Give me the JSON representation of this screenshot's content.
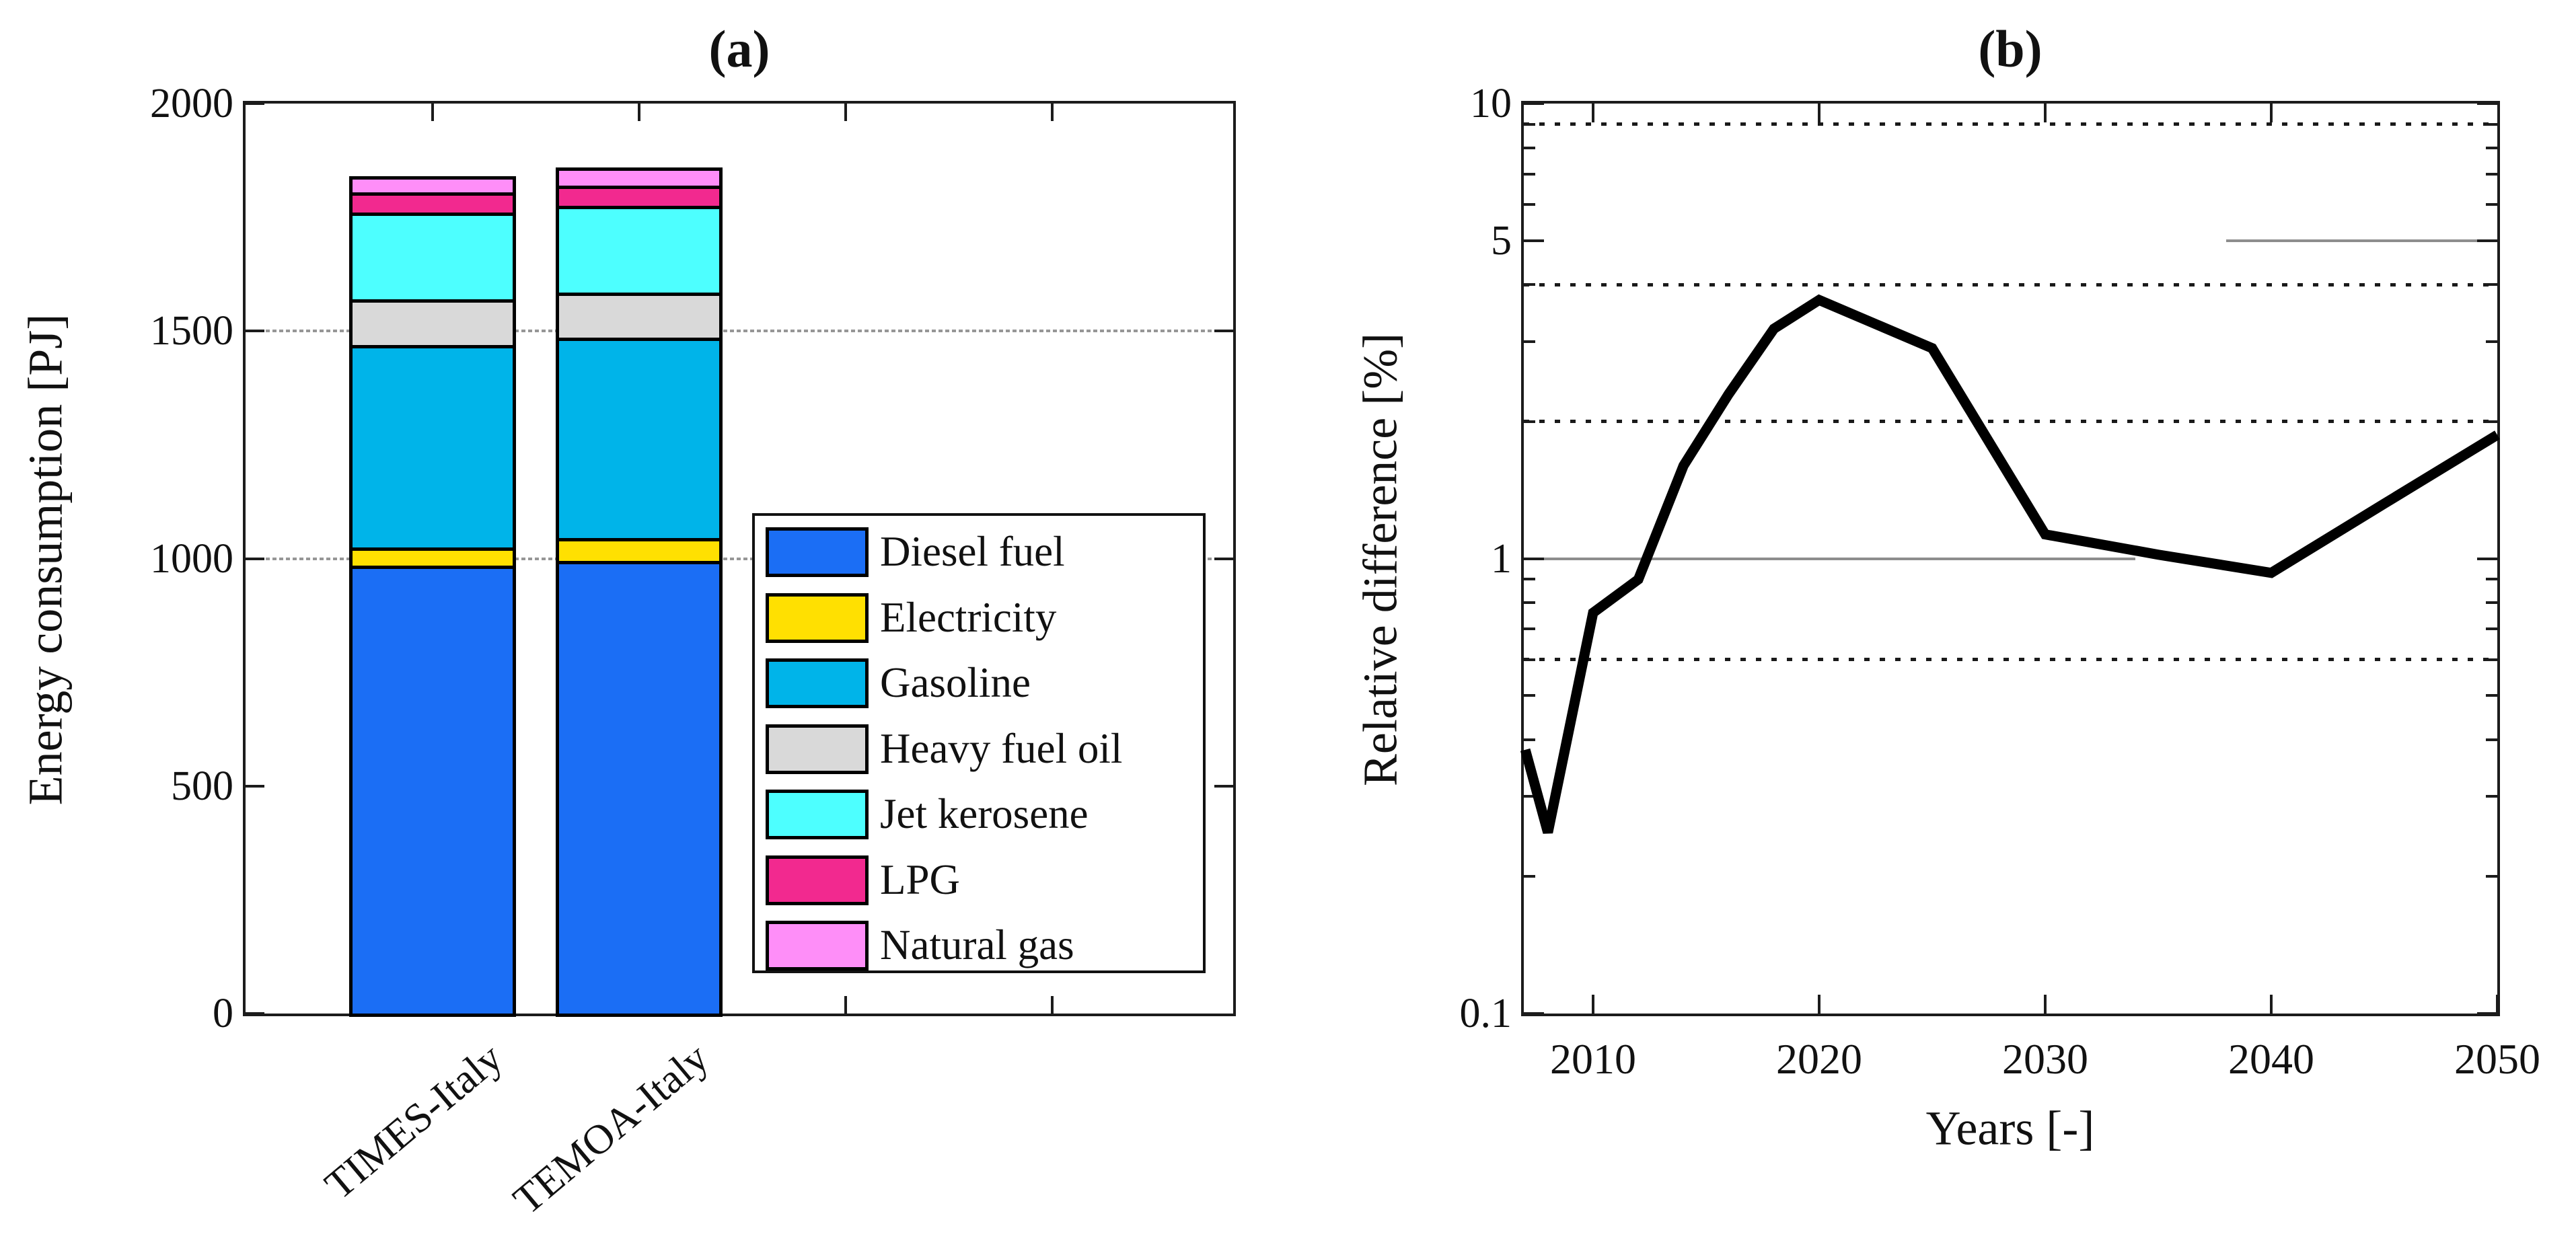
{
  "chart_data": [
    {
      "type": "bar",
      "stacked": true,
      "title": "(a)",
      "ylabel": "Energy consumption [PJ]",
      "ylim": [
        0,
        2000
      ],
      "yticks": [
        0,
        500,
        1000,
        1500,
        2000
      ],
      "gridlines_y": [
        1000,
        1500
      ],
      "grid": "partial-gray",
      "categories": [
        "TIMES-Italy",
        "TEMOA-Italy"
      ],
      "series": [
        {
          "name": "Diesel fuel",
          "color": "#1B6EF5",
          "values": [
            985,
            995
          ]
        },
        {
          "name": "Electricity",
          "color": "#FFE001",
          "values": [
            40,
            50
          ]
        },
        {
          "name": "Gasoline",
          "color": "#00B4E9",
          "values": [
            445,
            440
          ]
        },
        {
          "name": "Heavy fuel oil",
          "color": "#D9D9D9",
          "values": [
            100,
            100
          ]
        },
        {
          "name": "Jet kerosene",
          "color": "#4DFFFF",
          "values": [
            190,
            190
          ]
        },
        {
          "name": "LPG",
          "color": "#F2298F",
          "values": [
            45,
            45
          ]
        },
        {
          "name": "Natural gas",
          "color": "#FE8EF8",
          "values": [
            35,
            40
          ]
        }
      ],
      "totals": [
        1840,
        1860
      ],
      "legend_position": "lower right",
      "legend_labels": [
        "Diesel fuel",
        "Electricity",
        "Gasoline",
        "Heavy fuel oil",
        "Jet kerosene",
        "LPG",
        "Natural gas"
      ]
    },
    {
      "type": "line",
      "title": "(b)",
      "ylabel": "Relative difference [%]",
      "xlabel": "Years [-]",
      "yscale": "log",
      "ylim": [
        0.1,
        10
      ],
      "xlim": [
        2007,
        2050
      ],
      "ytick_labels": [
        "10",
        "5",
        "1",
        "0.1"
      ],
      "yticks": [
        10,
        5,
        1,
        0.1
      ],
      "yticks_minor": [
        9,
        8,
        7,
        6,
        4,
        3,
        2,
        0.9,
        0.8,
        0.7,
        0.6,
        0.5,
        0.4,
        0.3,
        0.2
      ],
      "xticks": [
        2010,
        2020,
        2030,
        2040,
        2050
      ],
      "dotted_gridlines_y": [
        9,
        4,
        2,
        0.6
      ],
      "gray_reference_segments": [
        {
          "y": 1,
          "x_from": 2007,
          "x_to": 2034
        },
        {
          "y": 5,
          "x_from": 2038,
          "x_to": 2050
        }
      ],
      "line_color": "#000000",
      "x": [
        2007,
        2008,
        2010,
        2012,
        2014,
        2016,
        2018,
        2020,
        2025,
        2030,
        2035,
        2040,
        2045,
        2050
      ],
      "y": [
        0.38,
        0.25,
        0.76,
        0.9,
        1.6,
        2.3,
        3.2,
        3.7,
        2.9,
        1.13,
        1.02,
        0.93,
        1.32,
        1.87
      ]
    }
  ]
}
